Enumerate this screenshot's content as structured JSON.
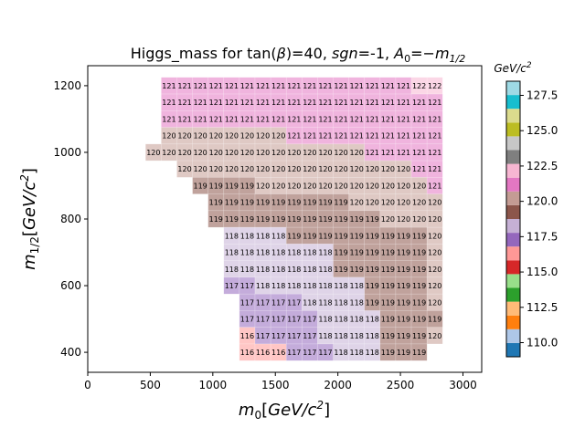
{
  "chart_data": {
    "type": "heatmap",
    "title": "Higgs_mass for tan(β)=40, sgn=-1, A₀=−m₁/₂",
    "title_parts": {
      "prefix": "Higgs_mass for tan(",
      "beta": "β",
      "mid1": ")=40, ",
      "sgn": "sgn",
      "mid2": "=-1, ",
      "A": "A",
      "A_sub": "0",
      "mid3": "=−",
      "m": "m",
      "m_sub": "1/2"
    },
    "xlabel": "m_0[GeV/c^2]",
    "xlabel_parts": {
      "m": "m",
      "sub": "0",
      "open": "[",
      "unit": "GeV/c",
      "sup": "2",
      "close": "]"
    },
    "ylabel": "m_1/2[GeV/c^2]",
    "ylabel_parts": {
      "m": "m",
      "sub": "1/2",
      "open": "[",
      "unit": "GeV/c",
      "sup": "2",
      "close": "]"
    },
    "xlim": [
      0,
      3150
    ],
    "ylim": [
      340,
      1260
    ],
    "xticks": [
      0,
      500,
      1000,
      1500,
      2000,
      2500,
      3000
    ],
    "yticks": [
      400,
      600,
      800,
      1000,
      1200
    ],
    "cell_size": {
      "dx": 125,
      "dy": 50
    },
    "colorbar": {
      "label_parts": {
        "unit": "GeV/c",
        "sup": "2"
      },
      "min": 109.0,
      "max": 128.5,
      "ticks": [
        110.0,
        112.5,
        115.0,
        117.5,
        120.0,
        122.5,
        125.0,
        127.5
      ],
      "colors": [
        "#1f77b4",
        "#aec7e8",
        "#ff7f0e",
        "#ffbb78",
        "#2ca02c",
        "#98df8a",
        "#d62728",
        "#ff9896",
        "#9467bd",
        "#c5b0d5",
        "#8c564b",
        "#c49c94",
        "#e377c2",
        "#f7b6d2",
        "#7f7f7f",
        "#c7c7c7",
        "#bcbd22",
        "#dbdb8d",
        "#17becf",
        "#9edae5"
      ]
    },
    "grid": false,
    "rows": [
      {
        "y": 1200,
        "x_start": 650,
        "values": [
          121,
          121,
          121,
          121,
          121,
          121,
          121,
          121,
          121,
          121,
          121,
          121,
          121,
          121,
          121,
          121,
          122,
          122
        ]
      },
      {
        "y": 1150,
        "x_start": 650,
        "values": [
          121,
          121,
          121,
          121,
          121,
          121,
          121,
          121,
          121,
          121,
          121,
          121,
          121,
          121,
          121,
          121,
          121,
          121
        ]
      },
      {
        "y": 1100,
        "x_start": 650,
        "values": [
          121,
          121,
          121,
          121,
          121,
          121,
          121,
          121,
          121,
          121,
          121,
          121,
          121,
          121,
          121,
          121,
          121,
          121
        ]
      },
      {
        "y": 1050,
        "x_start": 650,
        "values": [
          120,
          120,
          120,
          120,
          120,
          120,
          120,
          120,
          121,
          121,
          121,
          121,
          121,
          121,
          121,
          121,
          121,
          121
        ]
      },
      {
        "y": 1000,
        "x_start": 525,
        "values": [
          120,
          120,
          120,
          120,
          120,
          120,
          120,
          120,
          120,
          120,
          120,
          120,
          120,
          120,
          121,
          121,
          121,
          121,
          121
        ]
      },
      {
        "y": 950,
        "x_start": 775,
        "values": [
          120,
          120,
          120,
          120,
          120,
          120,
          120,
          120,
          120,
          120,
          120,
          120,
          120,
          120,
          120,
          121,
          121
        ]
      },
      {
        "y": 900,
        "x_start": 900,
        "values": [
          119,
          119,
          119,
          119,
          120,
          120,
          120,
          120,
          120,
          120,
          120,
          120,
          120,
          120,
          120,
          121
        ]
      },
      {
        "y": 850,
        "x_start": 1025,
        "values": [
          119,
          119,
          119,
          119,
          119,
          119,
          119,
          119,
          119,
          120,
          120,
          120,
          120,
          120,
          120
        ]
      },
      {
        "y": 800,
        "x_start": 1025,
        "values": [
          119,
          119,
          119,
          119,
          119,
          119,
          119,
          119,
          119,
          119,
          119,
          120,
          120,
          120,
          120
        ]
      },
      {
        "y": 750,
        "x_start": 1150,
        "values": [
          118,
          118,
          118,
          118,
          119,
          119,
          119,
          119,
          119,
          119,
          119,
          119,
          119,
          120
        ]
      },
      {
        "y": 700,
        "x_start": 1150,
        "values": [
          118,
          118,
          118,
          118,
          118,
          118,
          118,
          119,
          119,
          119,
          119,
          119,
          119,
          120
        ]
      },
      {
        "y": 650,
        "x_start": 1150,
        "values": [
          118,
          118,
          118,
          118,
          118,
          118,
          118,
          119,
          119,
          119,
          119,
          119,
          119,
          120
        ]
      },
      {
        "y": 600,
        "x_start": 1150,
        "values": [
          117,
          117,
          118,
          118,
          118,
          118,
          118,
          118,
          118,
          119,
          119,
          119,
          119,
          120
        ]
      },
      {
        "y": 550,
        "x_start": 1275,
        "values": [
          117,
          117,
          117,
          117,
          118,
          118,
          118,
          118,
          119,
          119,
          119,
          119,
          120
        ]
      },
      {
        "y": 500,
        "x_start": 1275,
        "values": [
          117,
          117,
          117,
          117,
          117,
          118,
          118,
          118,
          118,
          119,
          119,
          119,
          119
        ]
      },
      {
        "y": 450,
        "x_start": 1275,
        "values": [
          116,
          117,
          117,
          117,
          117,
          118,
          118,
          118,
          118,
          119,
          119,
          119,
          120
        ]
      },
      {
        "y": 400,
        "x_start": 1275,
        "values": [
          116,
          116,
          116,
          117,
          117,
          117,
          118,
          118,
          118,
          119,
          119,
          119
        ]
      }
    ]
  }
}
